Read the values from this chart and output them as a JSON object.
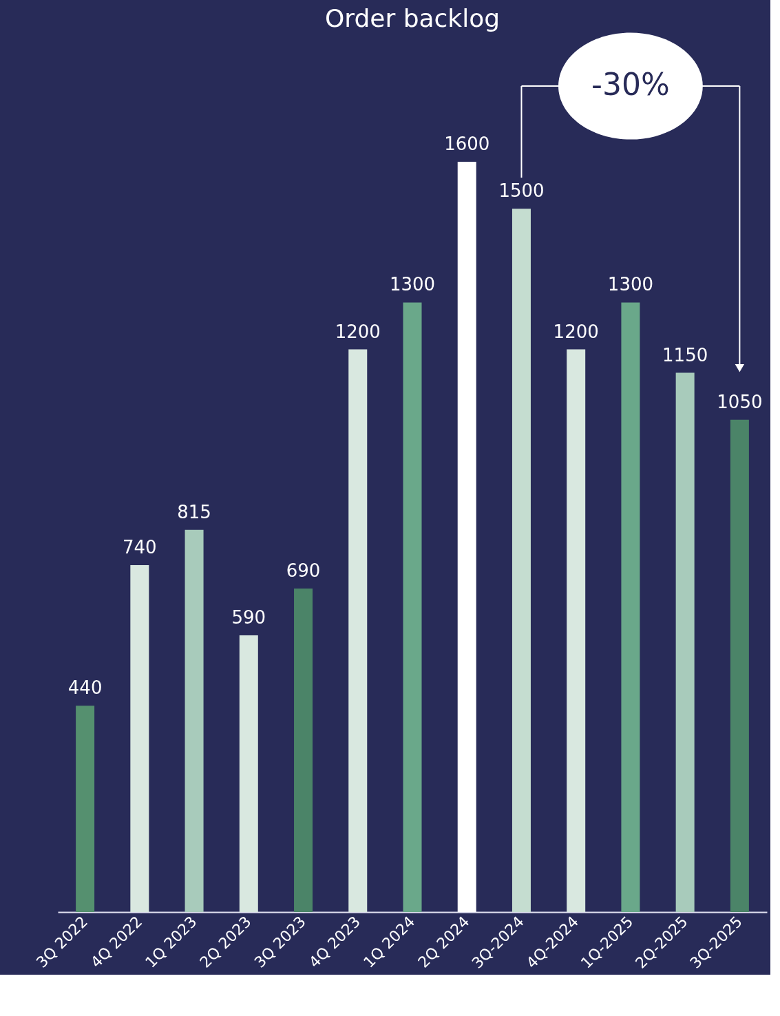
{
  "chart_data": {
    "type": "bar",
    "title": "Order backlog",
    "categories": [
      "3Q 2022",
      "4Q 2022",
      "1Q 2023",
      "2Q 2023",
      "3Q 2023",
      "4Q 2023",
      "1Q 2024",
      "2Q 2024",
      "3Q-2024",
      "4Q-2024",
      "1Q-2025",
      "2Q-2025",
      "3Q-2025"
    ],
    "values": [
      440,
      740,
      815,
      590,
      690,
      1200,
      1300,
      1600,
      1500,
      1200,
      1300,
      1150,
      1050
    ],
    "colors": [
      "#55906f",
      "#d9e8e0",
      "#a8cbbb",
      "#d9e8e0",
      "#4b8468",
      "#d9e8e0",
      "#6aa88a",
      "#ffffff",
      "#c5ddd0",
      "#d9e8e0",
      "#6aa88a",
      "#a8cbbb",
      "#4b8468"
    ],
    "data_labels": true,
    "grid": false,
    "legend": false,
    "annotations": [
      "-30%"
    ]
  }
}
